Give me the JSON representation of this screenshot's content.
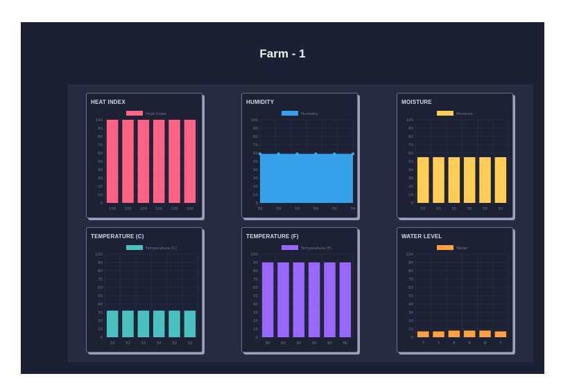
{
  "page": {
    "title": "Farm - 1"
  },
  "chart_data": [
    {
      "type": "bar",
      "title": "HEAT INDEX",
      "series": [
        {
          "name": "Heat Index",
          "values": [
            100,
            100,
            100,
            100,
            100,
            100
          ]
        }
      ],
      "categories": [
        "100",
        "100",
        "100",
        "100",
        "100",
        "100"
      ],
      "ylim": [
        0,
        100
      ],
      "yticks": [
        0,
        10,
        20,
        30,
        40,
        50,
        60,
        70,
        80,
        90,
        100
      ],
      "color": "#ff6384",
      "grid": true,
      "legend": "top-center"
    },
    {
      "type": "area",
      "title": "HUMIDITY",
      "series": [
        {
          "name": "Humidity",
          "values": [
            59,
            59,
            59,
            59,
            59,
            59
          ]
        }
      ],
      "categories": [
        "59",
        "59",
        "59",
        "59",
        "59",
        "59"
      ],
      "ylim": [
        0,
        100
      ],
      "yticks": [
        0,
        10,
        20,
        30,
        40,
        50,
        60,
        70,
        80,
        90,
        100
      ],
      "color": "#36a2eb",
      "grid": true,
      "legend": "top-center"
    },
    {
      "type": "bar",
      "title": "MOISTURE",
      "series": [
        {
          "name": "Moisture",
          "values": [
            55,
            55,
            55,
            55,
            55,
            55
          ]
        }
      ],
      "categories": [
        "55",
        "55",
        "55",
        "55",
        "55",
        "55"
      ],
      "ylim": [
        0,
        100
      ],
      "yticks": [
        0,
        10,
        20,
        30,
        40,
        50,
        60,
        70,
        80,
        90,
        100
      ],
      "color": "#ffcd56",
      "grid": true,
      "legend": "top-center"
    },
    {
      "type": "bar",
      "title": "TEMPERATURE (C)",
      "series": [
        {
          "name": "Temperature (C)",
          "values": [
            32,
            32,
            32,
            32,
            32,
            32
          ]
        }
      ],
      "categories": [
        "32",
        "32",
        "32",
        "32",
        "32",
        "32"
      ],
      "ylim": [
        0,
        100
      ],
      "yticks": [
        0,
        10,
        20,
        30,
        40,
        50,
        60,
        70,
        80,
        90,
        100
      ],
      "color": "#4bc0c0",
      "grid": true,
      "legend": "top-center"
    },
    {
      "type": "bar",
      "title": "TEMPERATURE (F)",
      "series": [
        {
          "name": "Temperature (F)",
          "values": [
            90,
            90,
            90,
            90,
            90,
            90
          ]
        }
      ],
      "categories": [
        "90",
        "90",
        "90",
        "90",
        "90",
        "90"
      ],
      "ylim": [
        0,
        100
      ],
      "yticks": [
        0,
        10,
        20,
        30,
        40,
        50,
        60,
        70,
        80,
        90,
        100
      ],
      "color": "#9966ff",
      "grid": true,
      "legend": "top-center"
    },
    {
      "type": "bar",
      "title": "WATER LEVEL",
      "series": [
        {
          "name": "Water",
          "values": [
            7,
            7,
            8,
            8,
            8,
            7
          ]
        }
      ],
      "categories": [
        "7",
        "7",
        "8",
        "8",
        "8",
        "7"
      ],
      "ylim": [
        0,
        100
      ],
      "yticks": [
        0,
        10,
        20,
        30,
        40,
        50,
        60,
        70,
        80,
        90,
        100
      ],
      "color": "#ff9f40",
      "grid": true,
      "legend": "top-center"
    }
  ]
}
